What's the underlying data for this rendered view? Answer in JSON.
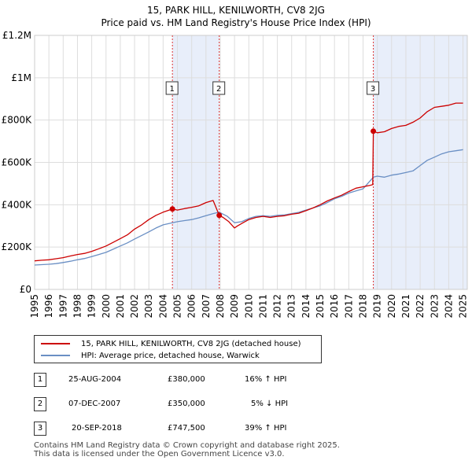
{
  "header": {
    "title": "15, PARK HILL, KENILWORTH, CV8 2JG",
    "subtitle": "Price paid vs. HM Land Registry's House Price Index (HPI)"
  },
  "colors": {
    "price_line": "#cc0000",
    "hpi_line": "#6a8fc4",
    "shade": "#e8eefa",
    "grid": "#dddddd",
    "marker_line": "#dd3333"
  },
  "chart_data": {
    "type": "line",
    "title": "15, PARK HILL, KENILWORTH, CV8 2JG",
    "xlim": [
      1995,
      2025.3
    ],
    "ylim": [
      0,
      1200000
    ],
    "y_ticks": [
      0,
      200000,
      400000,
      600000,
      800000,
      1000000,
      1200000
    ],
    "y_tick_labels": [
      "£0",
      "£200K",
      "£400K",
      "£600K",
      "£800K",
      "£1M",
      "£1.2M"
    ],
    "x_ticks": [
      "1995",
      "1996",
      "1997",
      "1998",
      "1999",
      "2000",
      "2001",
      "2002",
      "2003",
      "2004",
      "2005",
      "2006",
      "2007",
      "2008",
      "2009",
      "2010",
      "2011",
      "2012",
      "2013",
      "2014",
      "2015",
      "2016",
      "2017",
      "2018",
      "2019",
      "2020",
      "2021",
      "2022",
      "2023",
      "2024",
      "2025"
    ],
    "shaded_periods": [
      [
        2004.65,
        2007.93
      ],
      [
        2018.72,
        2025.3
      ]
    ],
    "series": [
      {
        "name": "15, PARK HILL, KENILWORTH, CV8 2JG (detached house)",
        "color": "#cc0000",
        "x": [
          1995,
          1995.5,
          1996,
          1996.5,
          1997,
          1997.5,
          1998,
          1998.5,
          1999,
          1999.5,
          2000,
          2000.5,
          2001,
          2001.5,
          2002,
          2002.5,
          2003,
          2003.5,
          2004,
          2004.65,
          2005,
          2005.5,
          2006,
          2006.5,
          2007,
          2007.5,
          2007.93,
          2008.2,
          2008.6,
          2009.0,
          2009.2,
          2009.6,
          2010,
          2010.5,
          2011,
          2011.5,
          2012,
          2012.5,
          2013,
          2013.5,
          2014,
          2014.5,
          2015,
          2015.5,
          2016,
          2016.5,
          2017,
          2017.5,
          2018,
          2018.5,
          2018.68,
          2018.72,
          2019,
          2019.5,
          2020,
          2020.5,
          2021,
          2021.5,
          2022,
          2022.5,
          2023,
          2023.5,
          2024,
          2024.5,
          2025
        ],
        "values": [
          135000,
          138000,
          140000,
          145000,
          150000,
          158000,
          165000,
          170000,
          180000,
          192000,
          205000,
          222000,
          240000,
          258000,
          285000,
          305000,
          330000,
          350000,
          365000,
          380000,
          375000,
          382000,
          388000,
          395000,
          410000,
          420000,
          350000,
          340000,
          320000,
          290000,
          300000,
          315000,
          330000,
          340000,
          345000,
          340000,
          345000,
          348000,
          355000,
          360000,
          372000,
          385000,
          400000,
          418000,
          432000,
          445000,
          462000,
          478000,
          485000,
          492000,
          495000,
          747500,
          740000,
          745000,
          760000,
          770000,
          775000,
          790000,
          810000,
          840000,
          860000,
          865000,
          870000,
          880000,
          880000
        ]
      },
      {
        "name": "HPI: Average price, detached house, Warwick",
        "color": "#6a8fc4",
        "x": [
          1995,
          1995.5,
          1996,
          1996.5,
          1997,
          1997.5,
          1998,
          1998.5,
          1999,
          1999.5,
          2000,
          2000.5,
          2001,
          2001.5,
          2002,
          2002.5,
          2003,
          2003.5,
          2004,
          2004.65,
          2005,
          2005.5,
          2006,
          2006.5,
          2007,
          2007.5,
          2007.93,
          2008.5,
          2009.0,
          2009.5,
          2010,
          2010.5,
          2011,
          2011.5,
          2012,
          2012.5,
          2013,
          2013.5,
          2014,
          2014.5,
          2015,
          2015.5,
          2016,
          2016.5,
          2017,
          2017.5,
          2018,
          2018.72,
          2019,
          2019.5,
          2020,
          2020.5,
          2021,
          2021.5,
          2022,
          2022.5,
          2023,
          2023.5,
          2024,
          2024.5,
          2025
        ],
        "values": [
          115000,
          117000,
          119000,
          122000,
          127000,
          133000,
          140000,
          146000,
          155000,
          165000,
          175000,
          190000,
          205000,
          220000,
          238000,
          255000,
          272000,
          290000,
          305000,
          315000,
          320000,
          325000,
          330000,
          338000,
          348000,
          358000,
          365000,
          345000,
          315000,
          320000,
          335000,
          345000,
          348000,
          345000,
          350000,
          352000,
          358000,
          364000,
          375000,
          385000,
          395000,
          410000,
          428000,
          440000,
          455000,
          465000,
          475000,
          530000,
          535000,
          530000,
          540000,
          545000,
          552000,
          560000,
          585000,
          610000,
          625000,
          640000,
          650000,
          655000,
          660000
        ]
      }
    ],
    "sales": [
      {
        "id": "1",
        "x": 2004.65,
        "value": 380000
      },
      {
        "id": "2",
        "x": 2007.93,
        "value": 350000
      },
      {
        "id": "3",
        "x": 2018.72,
        "value": 747500
      }
    ]
  },
  "legend": {
    "items": [
      {
        "label": "15, PARK HILL, KENILWORTH, CV8 2JG (detached house)"
      },
      {
        "label": "HPI: Average price, detached house, Warwick"
      }
    ]
  },
  "sales_table": [
    {
      "id": "1",
      "date": "25-AUG-2004",
      "price": "£380,000",
      "hpi": "16% ↑ HPI"
    },
    {
      "id": "2",
      "date": "07-DEC-2007",
      "price": "£350,000",
      "hpi": "5% ↓ HPI"
    },
    {
      "id": "3",
      "date": "20-SEP-2018",
      "price": "£747,500",
      "hpi": "39% ↑ HPI"
    }
  ],
  "footer": {
    "line1": "Contains HM Land Registry data © Crown copyright and database right 2025.",
    "line2": "This data is licensed under the Open Government Licence v3.0."
  }
}
